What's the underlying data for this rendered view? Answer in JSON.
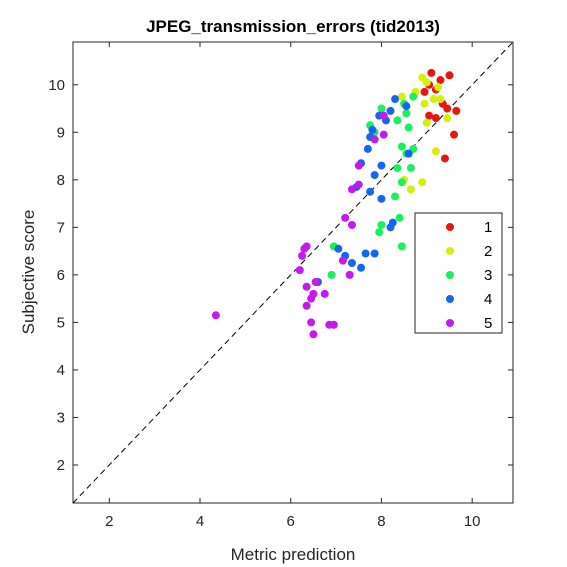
{
  "chart_data": {
    "type": "scatter",
    "title": "JPEG_transmission_errors (tid2013)",
    "xlabel": "Metric prediction",
    "ylabel": "Subjective score",
    "xlim": [
      1.2,
      10.9
    ],
    "ylim": [
      1.2,
      10.9
    ],
    "x_ticks": [
      2,
      4,
      6,
      8,
      10
    ],
    "y_ticks": [
      2,
      3,
      4,
      5,
      6,
      7,
      8,
      9,
      10
    ],
    "reference_line": "identity (dashed)",
    "legend_position": "right",
    "grid": false,
    "series": [
      {
        "name": "1",
        "color": "#e8160c",
        "points": [
          [
            9.1,
            10.25
          ],
          [
            9.5,
            10.2
          ],
          [
            9.3,
            10.1
          ],
          [
            9.05,
            10.0
          ],
          [
            9.2,
            9.9
          ],
          [
            8.95,
            9.85
          ],
          [
            9.35,
            9.6
          ],
          [
            9.65,
            9.45
          ],
          [
            9.45,
            9.5
          ],
          [
            9.2,
            9.3
          ],
          [
            9.05,
            9.35
          ],
          [
            9.6,
            8.95
          ],
          [
            9.4,
            8.45
          ]
        ]
      },
      {
        "name": "2",
        "color": "#d6ef0a",
        "points": [
          [
            8.9,
            10.15
          ],
          [
            9.0,
            10.05
          ],
          [
            9.25,
            9.95
          ],
          [
            8.75,
            9.85
          ],
          [
            9.15,
            9.7
          ],
          [
            8.95,
            9.6
          ],
          [
            9.3,
            9.7
          ],
          [
            8.45,
            9.75
          ],
          [
            9.0,
            9.2
          ],
          [
            9.2,
            8.6
          ],
          [
            9.45,
            9.3
          ],
          [
            8.5,
            8.0
          ],
          [
            8.65,
            7.8
          ],
          [
            8.9,
            7.95
          ]
        ]
      },
      {
        "name": "3",
        "color": "#19f05a",
        "points": [
          [
            8.7,
            9.75
          ],
          [
            8.5,
            9.6
          ],
          [
            8.55,
            9.4
          ],
          [
            8.35,
            9.25
          ],
          [
            8.6,
            9.1
          ],
          [
            8.0,
            9.5
          ],
          [
            7.75,
            9.15
          ],
          [
            7.85,
            9.0
          ],
          [
            8.45,
            8.7
          ],
          [
            8.55,
            8.55
          ],
          [
            8.7,
            8.65
          ],
          [
            8.35,
            8.25
          ],
          [
            8.65,
            8.25
          ],
          [
            8.45,
            7.95
          ],
          [
            8.3,
            7.65
          ],
          [
            8.4,
            7.2
          ],
          [
            8.0,
            7.05
          ],
          [
            7.95,
            6.9
          ],
          [
            8.45,
            6.6
          ],
          [
            6.95,
            6.6
          ],
          [
            6.9,
            6.0
          ]
        ]
      },
      {
        "name": "4",
        "color": "#1565f0",
        "points": [
          [
            8.55,
            9.55
          ],
          [
            8.3,
            9.7
          ],
          [
            7.95,
            9.35
          ],
          [
            8.2,
            9.45
          ],
          [
            8.1,
            9.25
          ],
          [
            7.8,
            9.05
          ],
          [
            7.75,
            8.9
          ],
          [
            7.55,
            8.35
          ],
          [
            7.85,
            8.1
          ],
          [
            8.0,
            8.3
          ],
          [
            7.7,
            8.65
          ],
          [
            7.45,
            7.85
          ],
          [
            7.75,
            7.75
          ],
          [
            8.0,
            7.6
          ],
          [
            7.2,
            6.4
          ],
          [
            7.35,
            6.25
          ],
          [
            7.65,
            6.45
          ],
          [
            7.85,
            6.45
          ],
          [
            7.55,
            6.15
          ],
          [
            7.05,
            6.55
          ],
          [
            6.6,
            5.85
          ],
          [
            8.6,
            8.55
          ],
          [
            8.2,
            7.0
          ],
          [
            8.25,
            7.1
          ]
        ]
      },
      {
        "name": "5",
        "color": "#c41af0",
        "points": [
          [
            8.05,
            9.35
          ],
          [
            7.5,
            8.3
          ],
          [
            7.85,
            8.85
          ],
          [
            7.35,
            7.8
          ],
          [
            7.5,
            7.9
          ],
          [
            7.2,
            7.2
          ],
          [
            7.35,
            7.05
          ],
          [
            6.3,
            6.55
          ],
          [
            6.25,
            6.4
          ],
          [
            6.35,
            6.6
          ],
          [
            6.2,
            6.1
          ],
          [
            7.15,
            6.3
          ],
          [
            7.3,
            6.0
          ],
          [
            6.35,
            5.75
          ],
          [
            6.5,
            5.6
          ],
          [
            6.45,
            5.5
          ],
          [
            6.75,
            5.6
          ],
          [
            6.55,
            5.85
          ],
          [
            6.35,
            5.35
          ],
          [
            6.45,
            5.0
          ],
          [
            6.5,
            4.75
          ],
          [
            6.95,
            4.95
          ],
          [
            6.85,
            4.95
          ],
          [
            4.35,
            5.15
          ],
          [
            8.05,
            8.95
          ]
        ]
      }
    ]
  }
}
